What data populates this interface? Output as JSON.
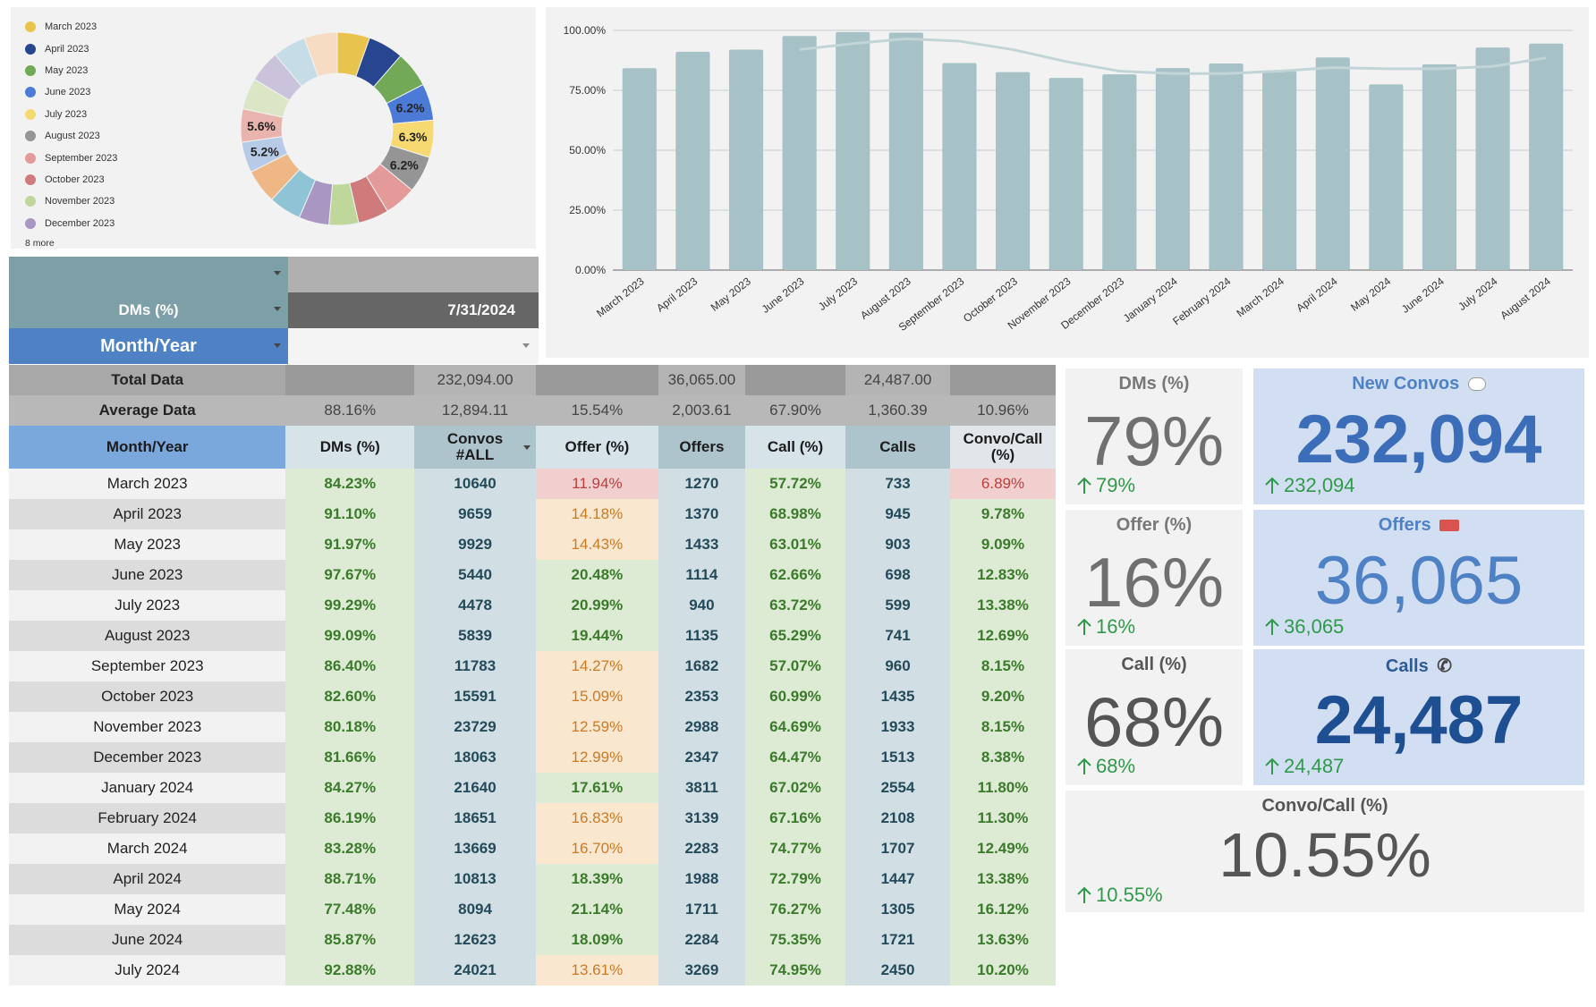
{
  "pie": {
    "legend": [
      {
        "label": "March 2023",
        "color": "#e8c44e"
      },
      {
        "label": "April 2023",
        "color": "#27468f"
      },
      {
        "label": "May 2023",
        "color": "#72a957"
      },
      {
        "label": "June 2023",
        "color": "#4b7bd6"
      },
      {
        "label": "July 2023",
        "color": "#f7d972"
      },
      {
        "label": "August 2023",
        "color": "#959595"
      },
      {
        "label": "September 2023",
        "color": "#e59a9a"
      },
      {
        "label": "October 2023",
        "color": "#d07b7b"
      },
      {
        "label": "November 2023",
        "color": "#bfd79a"
      },
      {
        "label": "December 2023",
        "color": "#a996c2"
      }
    ],
    "more_label": "8 more",
    "slices": [
      {
        "value": 5.5,
        "color": "#e8c44e",
        "label": ""
      },
      {
        "value": 6.0,
        "color": "#27468f",
        "label": ""
      },
      {
        "value": 6.1,
        "color": "#72a957",
        "label": ""
      },
      {
        "value": 6.2,
        "color": "#4b7bd6",
        "label": "6.2%"
      },
      {
        "value": 6.3,
        "color": "#f7d972",
        "label": "6.3%"
      },
      {
        "value": 6.2,
        "color": "#959595",
        "label": "6.2%"
      },
      {
        "value": 5.4,
        "color": "#e59a9a",
        "label": ""
      },
      {
        "value": 5.2,
        "color": "#d07b7b",
        "label": ""
      },
      {
        "value": 5.0,
        "color": "#bfd79a",
        "label": ""
      },
      {
        "value": 5.1,
        "color": "#a996c2",
        "label": ""
      },
      {
        "value": 5.5,
        "color": "#8fc3d6",
        "label": ""
      },
      {
        "value": 5.8,
        "color": "#f0b786",
        "label": ""
      },
      {
        "value": 5.2,
        "color": "#b7cbe8",
        "label": "5.2%"
      },
      {
        "value": 5.6,
        "color": "#e9b3ae",
        "label": "5.6%"
      },
      {
        "value": 5.3,
        "color": "#dbe6c6",
        "label": ""
      },
      {
        "value": 5.4,
        "color": "#cbc3dc",
        "label": ""
      },
      {
        "value": 5.6,
        "color": "#c5dde6",
        "label": ""
      },
      {
        "value": 5.6,
        "color": "#f6dcc2",
        "label": ""
      }
    ]
  },
  "chart_data": {
    "type": "bar",
    "categories": [
      "March 2023",
      "April 2023",
      "May 2023",
      "June 2023",
      "July 2023",
      "August 2023",
      "September 2023",
      "October 2023",
      "November 2023",
      "December 2023",
      "January 2024",
      "February 2024",
      "March 2024",
      "April 2024",
      "May 2024",
      "June 2024",
      "July 2024",
      "August 2024"
    ],
    "values": [
      84.23,
      91.1,
      91.97,
      97.67,
      99.29,
      99.09,
      86.4,
      82.6,
      80.18,
      81.66,
      84.27,
      86.19,
      83.28,
      88.71,
      77.48,
      85.87,
      92.88,
      94.5
    ],
    "trend": [
      null,
      null,
      null,
      92,
      94.5,
      96.5,
      95.5,
      92,
      87,
      83,
      82,
      82,
      83,
      84.5,
      84,
      84,
      85,
      88.5
    ],
    "yticks": [
      "0.00%",
      "25.00%",
      "50.00%",
      "75.00%",
      "100.00%"
    ],
    "ylim": [
      0,
      100
    ],
    "grid": true,
    "bar_color": "#a7c2c6",
    "trend_color": "#c2d4d7"
  },
  "filters": {
    "dms_label": "DMs (%)",
    "date_value": "7/31/2024",
    "month_label": "Month/Year"
  },
  "table": {
    "total_label": "Total Data",
    "total_values": [
      "232,094.00",
      "36,065.00",
      "24,487.00"
    ],
    "avg_label": "Average Data",
    "avg_values": [
      "88.16%",
      "12,894.11",
      "15.54%",
      "2,003.61",
      "67.90%",
      "1,360.39",
      "10.96%"
    ],
    "headers": [
      "Month/Year",
      "DMs (%)",
      "Convos #ALL",
      "Offer (%)",
      "Offers",
      "Call (%)",
      "Calls",
      "Convo/Call (%)"
    ],
    "rows": [
      {
        "cells": [
          "March 2023",
          "84.23%",
          "10640",
          "11.94%",
          "1270",
          "57.72%",
          "733",
          "6.89%"
        ],
        "offer": "r",
        "cc": "r"
      },
      {
        "cells": [
          "April 2023",
          "91.10%",
          "9659",
          "14.18%",
          "1370",
          "68.98%",
          "945",
          "9.78%"
        ],
        "offer": "o",
        "cc": "g"
      },
      {
        "cells": [
          "May 2023",
          "91.97%",
          "9929",
          "14.43%",
          "1433",
          "63.01%",
          "903",
          "9.09%"
        ],
        "offer": "o",
        "cc": "g"
      },
      {
        "cells": [
          "June 2023",
          "97.67%",
          "5440",
          "20.48%",
          "1114",
          "62.66%",
          "698",
          "12.83%"
        ],
        "offer": "g",
        "cc": "g"
      },
      {
        "cells": [
          "July 2023",
          "99.29%",
          "4478",
          "20.99%",
          "940",
          "63.72%",
          "599",
          "13.38%"
        ],
        "offer": "g",
        "cc": "g"
      },
      {
        "cells": [
          "August 2023",
          "99.09%",
          "5839",
          "19.44%",
          "1135",
          "65.29%",
          "741",
          "12.69%"
        ],
        "offer": "g",
        "cc": "g"
      },
      {
        "cells": [
          "September 2023",
          "86.40%",
          "11783",
          "14.27%",
          "1682",
          "57.07%",
          "960",
          "8.15%"
        ],
        "offer": "o",
        "cc": "g"
      },
      {
        "cells": [
          "October 2023",
          "82.60%",
          "15591",
          "15.09%",
          "2353",
          "60.99%",
          "1435",
          "9.20%"
        ],
        "offer": "o",
        "cc": "g"
      },
      {
        "cells": [
          "November 2023",
          "80.18%",
          "23729",
          "12.59%",
          "2988",
          "64.69%",
          "1933",
          "8.15%"
        ],
        "offer": "o",
        "cc": "g"
      },
      {
        "cells": [
          "December 2023",
          "81.66%",
          "18063",
          "12.99%",
          "2347",
          "64.47%",
          "1513",
          "8.38%"
        ],
        "offer": "o",
        "cc": "g"
      },
      {
        "cells": [
          "January 2024",
          "84.27%",
          "21640",
          "17.61%",
          "3811",
          "67.02%",
          "2554",
          "11.80%"
        ],
        "offer": "g",
        "cc": "g"
      },
      {
        "cells": [
          "February 2024",
          "86.19%",
          "18651",
          "16.83%",
          "3139",
          "67.16%",
          "2108",
          "11.30%"
        ],
        "offer": "o",
        "cc": "g"
      },
      {
        "cells": [
          "March 2024",
          "83.28%",
          "13669",
          "16.70%",
          "2283",
          "74.77%",
          "1707",
          "12.49%"
        ],
        "offer": "o",
        "cc": "g"
      },
      {
        "cells": [
          "April 2024",
          "88.71%",
          "10813",
          "18.39%",
          "1988",
          "72.79%",
          "1447",
          "13.38%"
        ],
        "offer": "g",
        "cc": "g"
      },
      {
        "cells": [
          "May 2024",
          "77.48%",
          "8094",
          "21.14%",
          "1711",
          "76.27%",
          "1305",
          "16.12%"
        ],
        "offer": "g",
        "cc": "g"
      },
      {
        "cells": [
          "June 2024",
          "85.87%",
          "12623",
          "18.09%",
          "2284",
          "75.35%",
          "1721",
          "13.63%"
        ],
        "offer": "g",
        "cc": "g"
      },
      {
        "cells": [
          "July 2024",
          "92.88%",
          "24021",
          "13.61%",
          "3269",
          "74.95%",
          "2450",
          "10.20%"
        ],
        "offer": "o",
        "cc": "g"
      }
    ]
  },
  "kpis": {
    "dms": {
      "title": "DMs (%)",
      "value": "79%",
      "delta": "79%"
    },
    "new_convos": {
      "title": "New Convos",
      "icon": "speech-bubble-icon",
      "value": "232,094",
      "delta": "232,094"
    },
    "offer": {
      "title": "Offer (%)",
      "value": "16%",
      "delta": "16%"
    },
    "offers": {
      "title": "Offers",
      "icon": "ticket-icon",
      "value": "36,065",
      "delta": "36,065"
    },
    "call": {
      "title": "Call (%)",
      "value": "68%",
      "delta": "68%"
    },
    "calls": {
      "title": "Calls",
      "icon": "phone-icon",
      "value": "24,487",
      "delta": "24,487"
    },
    "convo_call": {
      "title": "Convo/Call (%)",
      "value": "10.55%",
      "delta": "10.55%"
    }
  }
}
